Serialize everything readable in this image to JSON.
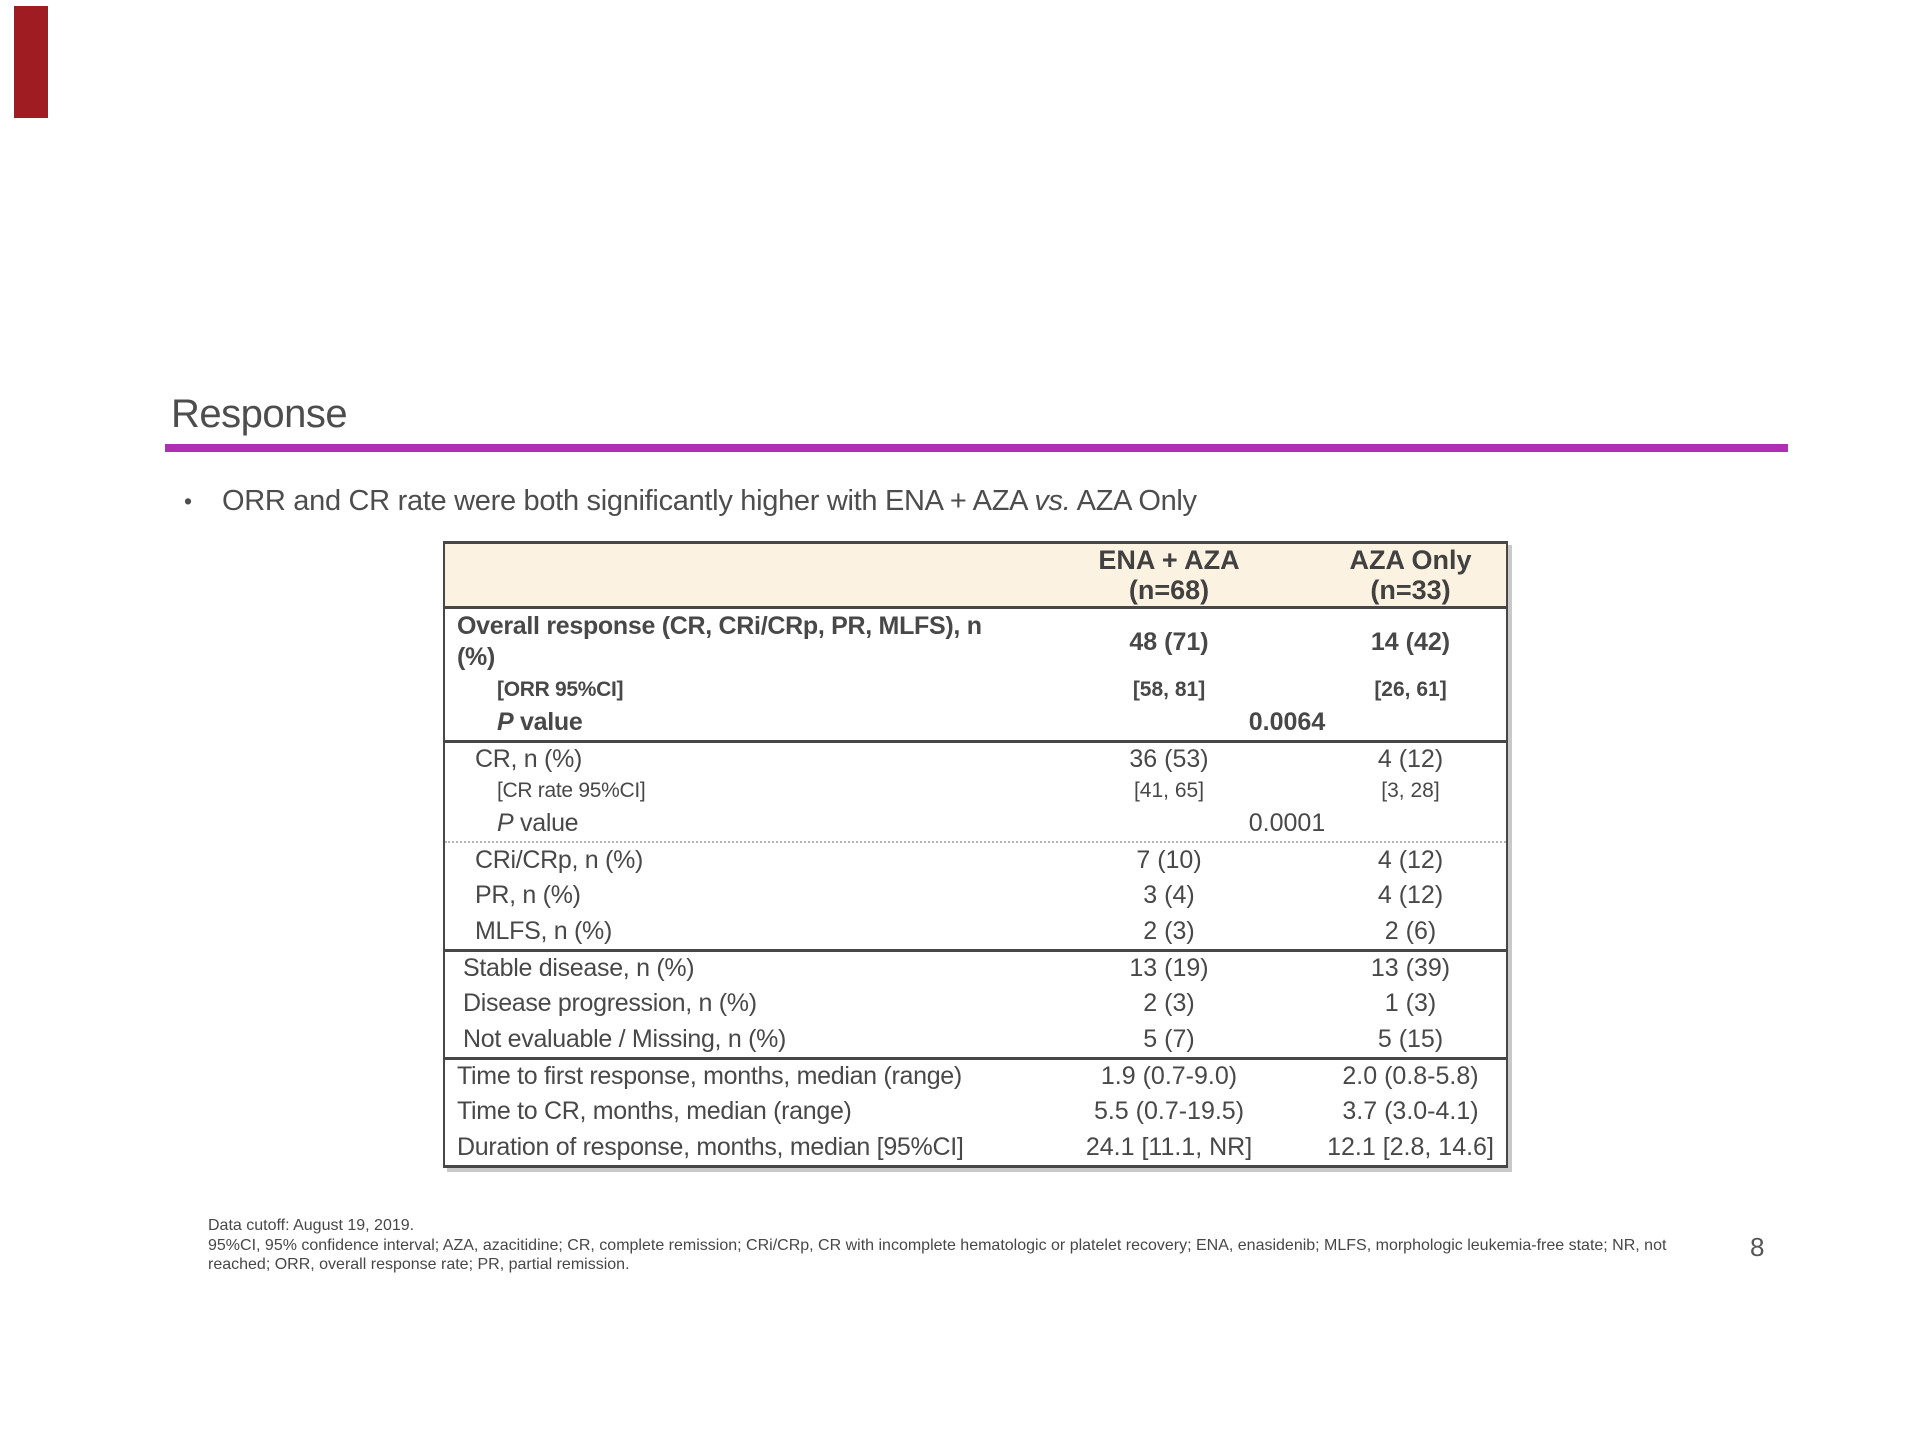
{
  "slide": {
    "title": "Response",
    "page_number": "8",
    "bullet": {
      "marker": "•",
      "pre": "ORR and CR rate were both significantly higher with ENA + AZA ",
      "emphasis": "vs.",
      "post": " AZA Only"
    },
    "colors": {
      "accent_rule": "#AF2FB4",
      "corner_bar": "#9E1C22",
      "table_header_bg": "#FCF2E2"
    }
  },
  "table": {
    "columns": [
      {
        "title": "ENA + AZA",
        "subtitle": "(n=68)"
      },
      {
        "title": "AZA Only",
        "subtitle": "(n=33)"
      }
    ],
    "rows": [
      {
        "label": "Overall response (CR, CRi/CRp, PR, MLFS), n (%)",
        "ena": "48 (71)",
        "aza": "14 (42)",
        "type": "main",
        "indent": 0,
        "bold": true,
        "tall": true
      },
      {
        "label": "[ORR 95%CI]",
        "ena": "[58, 81]",
        "aza": "[26, 61]",
        "type": "sub",
        "indent": 3,
        "bold": true
      },
      {
        "label_italic": "P",
        "label": " value",
        "pvalue": "0.0064",
        "type": "pvalue",
        "indent": 3,
        "bold": true
      },
      {
        "label": "CR, n (%)",
        "ena": "36 (53)",
        "aza": "4 (12)",
        "type": "main",
        "indent": 2,
        "border_top": "thick"
      },
      {
        "label": "[CR rate 95%CI]",
        "ena": "[41, 65]",
        "aza": "[3, 28]",
        "type": "sub",
        "indent": 3
      },
      {
        "label_italic": "P",
        "label": " value",
        "pvalue": "0.0001",
        "type": "pvalue",
        "indent": 3
      },
      {
        "label": "CRi/CRp, n (%)",
        "ena": "7 (10)",
        "aza": "4 (12)",
        "type": "main",
        "indent": 2,
        "border_top": "dotted"
      },
      {
        "label": "PR, n (%)",
        "ena": "3 (4)",
        "aza": "4 (12)",
        "type": "main",
        "indent": 2
      },
      {
        "label": "MLFS, n (%)",
        "ena": "2 (3)",
        "aza": "2 (6)",
        "type": "main",
        "indent": 2
      },
      {
        "label": "Stable disease, n (%)",
        "ena": "13 (19)",
        "aza": "13 (39)",
        "type": "main",
        "indent": 1,
        "border_top": "thick"
      },
      {
        "label": "Disease progression, n (%)",
        "ena": "2 (3)",
        "aza": "1 (3)",
        "type": "main",
        "indent": 1
      },
      {
        "label": "Not evaluable / Missing, n (%)",
        "ena": "5 (7)",
        "aza": "5 (15)",
        "type": "main",
        "indent": 1
      },
      {
        "label": "Time to first response, months, median (range)",
        "ena": "1.9 (0.7-9.0)",
        "aza": "2.0 (0.8-5.8)",
        "type": "main",
        "indent": 0,
        "border_top": "thick"
      },
      {
        "label": "Time to CR, months, median (range)",
        "ena": "5.5 (0.7-19.5)",
        "aza": "3.7 (3.0-4.1)",
        "type": "main",
        "indent": 0
      },
      {
        "label": "Duration of response, months, median [95%CI]",
        "ena": "24.1 [11.1, NR]",
        "aza": "12.1 [2.8, 14.6]",
        "type": "main",
        "indent": 0
      }
    ]
  },
  "footer": {
    "lines": [
      "Data cutoff: August 19, 2019.",
      "95%CI, 95% confidence interval; AZA, azacitidine; CR, complete remission; CRi/CRp, CR with incomplete hematologic or platelet recovery; ENA, enasidenib; MLFS, morphologic leukemia-free state; NR, not",
      "reached; ORR, overall response rate; PR, partial remission."
    ]
  }
}
